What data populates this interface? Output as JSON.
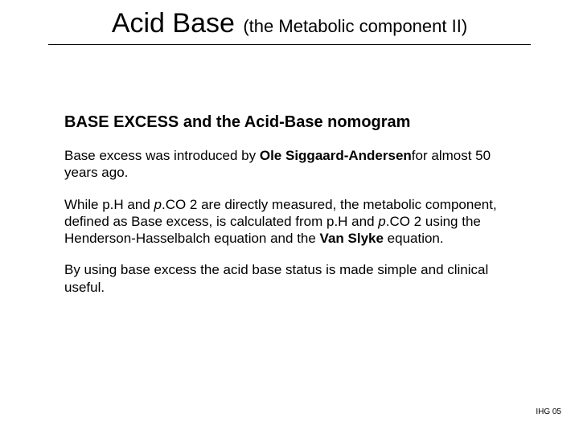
{
  "title": {
    "main": "Acid Base",
    "sub": "(the Metabolic component II)"
  },
  "section_heading": "BASE EXCESS and the Acid-Base nomogram",
  "para1_html": "Base excess was introduced by <span class=\"bold\">Ole Siggaard-Andersen</span>for almost 50 years ago.",
  "para2_html": "While p.H and <span style=\"font-style:italic;\">p</span>.CO 2 are directly measured, the metabolic component, defined as Base excess, is calculated from p.H and <span style=\"font-style:italic;\">p</span>.CO 2 using the Henderson-Hasselbalch equation and the <span class=\"bold\">Van Slyke</span> equation.",
  "para3": "By using base excess the acid base status is made simple and clinical useful.",
  "footer": "IHG 05",
  "colors": {
    "background": "#ffffff",
    "text": "#000000",
    "rule": "#000000"
  }
}
